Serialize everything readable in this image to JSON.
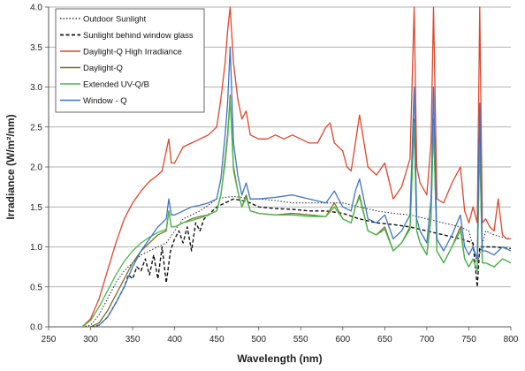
{
  "chart_data": {
    "type": "line",
    "title": "",
    "xlabel": "Wavelength (nm)",
    "ylabel": "Irradiance (W/m²/nm)",
    "xlim": [
      250,
      800
    ],
    "ylim": [
      0,
      4.0
    ],
    "x_ticks": [
      "250",
      "300",
      "350",
      "400",
      "450",
      "500",
      "550",
      "600",
      "650",
      "700",
      "750",
      "800"
    ],
    "y_ticks": [
      "0.0",
      "0.5",
      "1.0",
      "1.5",
      "2.0",
      "2.5",
      "3.0",
      "3.5",
      "4.0"
    ],
    "grid": "horizontal",
    "legend_position": "top-left",
    "series": [
      {
        "name": "Outdoor Sunlight",
        "color": "#333333",
        "style": "dotted",
        "x": [
          290,
          300,
          310,
          320,
          330,
          340,
          350,
          360,
          370,
          380,
          390,
          400,
          410,
          420,
          430,
          440,
          450,
          460,
          470,
          480,
          490,
          500,
          520,
          540,
          560,
          580,
          600,
          620,
          640,
          660,
          680,
          700,
          720,
          740,
          750,
          760,
          770,
          780,
          790,
          800
        ],
        "y": [
          0.0,
          0.02,
          0.15,
          0.35,
          0.55,
          0.7,
          0.8,
          0.9,
          0.95,
          1.0,
          1.05,
          1.2,
          1.35,
          1.4,
          1.45,
          1.52,
          1.6,
          1.62,
          1.63,
          1.62,
          1.6,
          1.6,
          1.58,
          1.55,
          1.55,
          1.55,
          1.55,
          1.5,
          1.45,
          1.42,
          1.4,
          1.35,
          1.3,
          1.25,
          1.2,
          0.8,
          1.2,
          1.15,
          1.12,
          1.1
        ]
      },
      {
        "name": "Sunlight behind window glass",
        "color": "#111111",
        "style": "dashed",
        "x": [
          300,
          310,
          320,
          330,
          340,
          345,
          350,
          355,
          360,
          365,
          370,
          375,
          380,
          385,
          390,
          395,
          400,
          405,
          410,
          415,
          420,
          425,
          430,
          435,
          440,
          450,
          460,
          470,
          480,
          490,
          500,
          520,
          540,
          560,
          580,
          600,
          620,
          640,
          660,
          680,
          700,
          720,
          740,
          755,
          760,
          763,
          770,
          780,
          800
        ],
        "y": [
          0.0,
          0.02,
          0.12,
          0.3,
          0.5,
          0.65,
          0.6,
          0.75,
          0.7,
          0.85,
          0.65,
          0.9,
          0.6,
          1.0,
          0.55,
          0.95,
          1.1,
          1.2,
          1.05,
          1.25,
          0.95,
          1.3,
          1.2,
          1.35,
          1.4,
          1.5,
          1.55,
          1.6,
          1.58,
          1.55,
          1.5,
          1.48,
          1.47,
          1.45,
          1.45,
          1.42,
          1.35,
          1.3,
          1.28,
          1.25,
          1.2,
          1.15,
          1.1,
          1.05,
          0.5,
          1.0,
          1.0,
          1.0,
          0.98
        ]
      },
      {
        "name": "Daylight-Q High Irradiance",
        "color": "#e0452b",
        "style": "solid",
        "x": [
          290,
          300,
          310,
          320,
          330,
          340,
          350,
          360,
          370,
          380,
          385,
          390,
          393,
          396,
          400,
          410,
          420,
          430,
          440,
          450,
          455,
          460,
          463,
          466,
          470,
          475,
          480,
          485,
          490,
          500,
          510,
          520,
          530,
          540,
          550,
          560,
          570,
          580,
          585,
          590,
          600,
          605,
          610,
          615,
          620,
          630,
          640,
          650,
          660,
          670,
          680,
          685,
          688,
          692,
          700,
          705,
          708,
          712,
          720,
          730,
          740,
          745,
          750,
          755,
          760,
          763,
          766,
          770,
          775,
          780,
          785,
          790,
          795,
          800
        ],
        "y": [
          0.0,
          0.1,
          0.35,
          0.7,
          1.05,
          1.35,
          1.55,
          1.7,
          1.82,
          1.9,
          1.95,
          2.2,
          2.35,
          2.05,
          2.05,
          2.25,
          2.3,
          2.35,
          2.4,
          2.5,
          2.85,
          3.3,
          3.7,
          4.0,
          3.3,
          2.85,
          2.6,
          2.7,
          2.4,
          2.35,
          2.35,
          2.4,
          2.35,
          2.4,
          2.35,
          2.3,
          2.3,
          2.5,
          2.55,
          2.3,
          2.2,
          2.0,
          1.95,
          2.3,
          2.65,
          2.0,
          1.9,
          2.05,
          1.6,
          1.75,
          2.1,
          4.0,
          2.0,
          1.8,
          1.65,
          2.3,
          4.0,
          1.6,
          1.55,
          1.8,
          2.0,
          1.45,
          1.3,
          1.5,
          1.3,
          4.0,
          1.3,
          1.35,
          1.25,
          1.2,
          1.6,
          1.15,
          1.1,
          1.1
        ]
      },
      {
        "name": "Daylight-Q",
        "color": "#7a6e2a",
        "style": "solid",
        "x": [
          300,
          310,
          320,
          330,
          340,
          350,
          360,
          370,
          380,
          390,
          393,
          396,
          400,
          410,
          420,
          430,
          440,
          450,
          455,
          460,
          463,
          466,
          470,
          475,
          480,
          485,
          490,
          500,
          520,
          540,
          560,
          580,
          590,
          600,
          610,
          615,
          620,
          630,
          640,
          650,
          660,
          670,
          680,
          685,
          688,
          692,
          700,
          705,
          708,
          712,
          720,
          730,
          740,
          745,
          750,
          755,
          760,
          763,
          766,
          770,
          780,
          790,
          800
        ],
        "y": [
          0.0,
          0.05,
          0.2,
          0.4,
          0.6,
          0.8,
          0.95,
          1.05,
          1.15,
          1.2,
          1.45,
          1.25,
          1.25,
          1.3,
          1.35,
          1.38,
          1.4,
          1.45,
          1.65,
          2.1,
          2.4,
          2.9,
          2.0,
          1.7,
          1.5,
          1.65,
          1.45,
          1.42,
          1.4,
          1.42,
          1.4,
          1.38,
          1.55,
          1.35,
          1.3,
          1.5,
          1.65,
          1.2,
          1.15,
          1.25,
          0.95,
          1.05,
          1.25,
          2.6,
          1.2,
          1.05,
          0.9,
          1.4,
          2.6,
          0.95,
          0.8,
          1.0,
          1.25,
          0.85,
          0.75,
          0.85,
          0.7,
          2.4,
          0.8,
          0.8,
          0.75,
          0.85,
          0.8
        ]
      },
      {
        "name": "Extended UV-Q/B",
        "color": "#48b94a",
        "style": "solid",
        "x": [
          290,
          300,
          310,
          320,
          330,
          340,
          350,
          360,
          370,
          380,
          390,
          393,
          396,
          400,
          410,
          420,
          430,
          440,
          450,
          455,
          460,
          463,
          466,
          470,
          475,
          480,
          485,
          490,
          500,
          520,
          540,
          560,
          580,
          590,
          600,
          610,
          615,
          620,
          630,
          640,
          650,
          660,
          670,
          680,
          685,
          688,
          692,
          700,
          705,
          708,
          712,
          720,
          730,
          740,
          745,
          750,
          755,
          760,
          763,
          766,
          770,
          780,
          790,
          800
        ],
        "y": [
          0.0,
          0.08,
          0.25,
          0.45,
          0.65,
          0.82,
          0.95,
          1.05,
          1.12,
          1.18,
          1.22,
          1.45,
          1.25,
          1.25,
          1.3,
          1.33,
          1.36,
          1.4,
          1.45,
          1.65,
          2.05,
          2.35,
          2.85,
          1.95,
          1.7,
          1.5,
          1.62,
          1.45,
          1.42,
          1.4,
          1.4,
          1.38,
          1.38,
          1.5,
          1.35,
          1.3,
          1.5,
          1.62,
          1.2,
          1.15,
          1.22,
          0.95,
          1.05,
          1.22,
          2.55,
          1.2,
          1.05,
          0.9,
          1.35,
          2.55,
          0.95,
          0.8,
          1.0,
          1.2,
          0.85,
          0.75,
          0.85,
          0.7,
          2.3,
          0.8,
          0.8,
          0.75,
          0.85,
          0.8
        ]
      },
      {
        "name": "Window - Q",
        "color": "#3f74c4",
        "style": "solid",
        "x": [
          305,
          310,
          320,
          330,
          340,
          350,
          360,
          370,
          380,
          390,
          393,
          396,
          400,
          410,
          420,
          430,
          440,
          450,
          455,
          460,
          463,
          466,
          470,
          475,
          480,
          485,
          490,
          500,
          520,
          540,
          560,
          580,
          590,
          600,
          610,
          615,
          620,
          630,
          640,
          650,
          660,
          670,
          680,
          685,
          688,
          692,
          700,
          705,
          708,
          712,
          720,
          730,
          740,
          745,
          750,
          755,
          760,
          763,
          766,
          770,
          780,
          790,
          800
        ],
        "y": [
          0.0,
          0.02,
          0.12,
          0.3,
          0.5,
          0.75,
          0.95,
          1.1,
          1.25,
          1.35,
          1.6,
          1.4,
          1.4,
          1.45,
          1.5,
          1.52,
          1.55,
          1.6,
          1.85,
          2.4,
          2.8,
          3.5,
          2.3,
          1.9,
          1.65,
          1.8,
          1.6,
          1.6,
          1.62,
          1.65,
          1.6,
          1.55,
          1.7,
          1.5,
          1.45,
          1.7,
          1.85,
          1.35,
          1.3,
          1.4,
          1.1,
          1.2,
          1.4,
          3.0,
          1.35,
          1.2,
          1.05,
          1.6,
          3.0,
          1.1,
          0.95,
          1.15,
          1.4,
          1.0,
          0.9,
          1.0,
          0.85,
          2.8,
          0.95,
          0.95,
          0.9,
          1.0,
          0.95
        ]
      }
    ]
  }
}
